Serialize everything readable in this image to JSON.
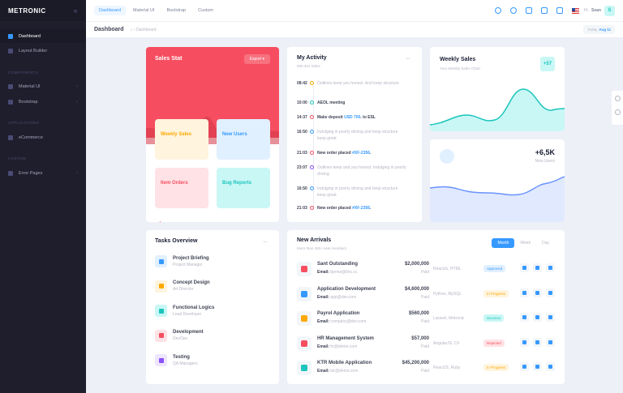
{
  "brand": {
    "name": "METRONIC"
  },
  "sidebar": {
    "items": [
      {
        "label": "Dashboard",
        "active": true
      },
      {
        "label": "Layout Builder"
      }
    ],
    "sections": [
      {
        "title": "COMPONENTS",
        "items": [
          {
            "label": "Material UI"
          },
          {
            "label": "Bootstrap"
          }
        ]
      },
      {
        "title": "APPLICATIONS",
        "items": [
          {
            "label": "eCommerce"
          }
        ]
      },
      {
        "title": "CUSTOM",
        "items": [
          {
            "label": "Error Pages"
          }
        ]
      }
    ]
  },
  "header": {
    "tabs": [
      "Dashboard",
      "Material UI",
      "Bootstrap",
      "Custom"
    ],
    "greeting": "Hi,",
    "user": "Sean",
    "avatar": "S"
  },
  "subheader": {
    "title": "Dashboard",
    "breadcrumb": "Dashboard",
    "date_label": "Today",
    "date": "Aug 11"
  },
  "sales_stat": {
    "title": "Sales Stat",
    "export_label": "Export",
    "tiles": [
      {
        "label": "Weekly Sales",
        "color": "#ffa800",
        "bg": "#fff4de"
      },
      {
        "label": "New Users",
        "color": "#3699ff",
        "bg": "#e1f0ff"
      },
      {
        "label": "Item Orders",
        "color": "#f64e60",
        "bg": "#ffe2e5"
      },
      {
        "label": "Bug Reports",
        "color": "#1bc5bd",
        "bg": "#c9f7f5"
      }
    ]
  },
  "activity": {
    "title": "My Activity",
    "subtitle": "890,344 Sales",
    "rows": [
      {
        "time": "08:42",
        "text": "Outlines keep you honest. And keep structure",
        "bold": false,
        "color": "#ffa800"
      },
      {
        "time": "10:00",
        "text": "AEOL meeting",
        "bold": true,
        "color": "#1bc5bd"
      },
      {
        "time": "14:37",
        "text": "Make deposit ",
        "link": "USD 700",
        "after": ". to ESL",
        "bold": true,
        "color": "#f64e60"
      },
      {
        "time": "16:50",
        "text": "Indulging in poorly driving and keep structure keep great",
        "bold": false,
        "color": "#3699ff"
      },
      {
        "time": "21:03",
        "text": "New order placed ",
        "link": "#XF-2356",
        "after": ".",
        "bold": true,
        "color": "#f64e60"
      },
      {
        "time": "23:07",
        "text": "Outlines keep and you honest. Indulging in poorly driving",
        "bold": false,
        "color": "#8950fc"
      },
      {
        "time": "16:50",
        "text": "Indulging in poorly driving and keep structure keep great",
        "bold": false,
        "color": "#3699ff"
      },
      {
        "time": "21:03",
        "text": "New order placed ",
        "link": "#XF-2356",
        "after": ".",
        "bold": true,
        "color": "#f64e60"
      }
    ]
  },
  "weekly_sales": {
    "title": "Weekly Sales",
    "subtitle": "Your Weekly Sales Chart",
    "badge": "+57"
  },
  "new_users": {
    "value": "+6,5K",
    "label": "New Users"
  },
  "tasks": {
    "title": "Tasks Overview",
    "items": [
      {
        "name": "Project Briefing",
        "role": "Project Manager",
        "color": "#3699ff",
        "bg": "#e1f0ff"
      },
      {
        "name": "Concept Design",
        "role": "Art Director",
        "color": "#ffa800",
        "bg": "#fff4de"
      },
      {
        "name": "Functional Logics",
        "role": "Lead Developer",
        "color": "#1bc5bd",
        "bg": "#c9f7f5"
      },
      {
        "name": "Development",
        "role": "DevOps",
        "color": "#f64e60",
        "bg": "#ffe2e5"
      },
      {
        "name": "Testing",
        "role": "QA Managers",
        "color": "#8950fc",
        "bg": "#eee5ff"
      }
    ]
  },
  "arrivals": {
    "title": "New Arrivals",
    "subtitle": "More than 400+ new members",
    "tabs": [
      "Month",
      "Week",
      "Day"
    ],
    "email_label": "Email:",
    "rows": [
      {
        "name": "Sant Outstanding",
        "email": "bprow@bnc.cc",
        "amount": "$2,000,000",
        "paid": "Paid",
        "stack": "ReactJs, HTML",
        "status": "Approved",
        "status_color": "#3699ff",
        "status_bg": "#e1f0ff",
        "logo_color": "#f64e60"
      },
      {
        "name": "Application Development",
        "email": "app@dev.com",
        "amount": "$4,600,000",
        "paid": "Paid",
        "stack": "Python, MySQL",
        "status": "In Progress",
        "status_color": "#ffa800",
        "status_bg": "#fff4de",
        "logo_color": "#3699ff"
      },
      {
        "name": "Payrol Application",
        "email": "company@dev.com",
        "amount": "$560,000",
        "paid": "Paid",
        "stack": "Laravel, Metronic",
        "status": "Success",
        "status_color": "#1bc5bd",
        "status_bg": "#c9f7f5",
        "logo_color": "#ffa800"
      },
      {
        "name": "HR Management System",
        "email": "hr@demo.com",
        "amount": "$57,000",
        "paid": "Paid",
        "stack": "AngularJS, C#",
        "status": "Rejected",
        "status_color": "#f64e60",
        "status_bg": "#ffe2e5",
        "logo_color": "#f64e60"
      },
      {
        "name": "KTR Mobile Application",
        "email": "ktr@demo.com",
        "amount": "$45,200,000",
        "paid": "Paid",
        "stack": "ReactJS, Ruby",
        "status": "In Progress",
        "status_color": "#ffa800",
        "status_bg": "#fff4de",
        "logo_color": "#1bc5bd"
      }
    ]
  }
}
